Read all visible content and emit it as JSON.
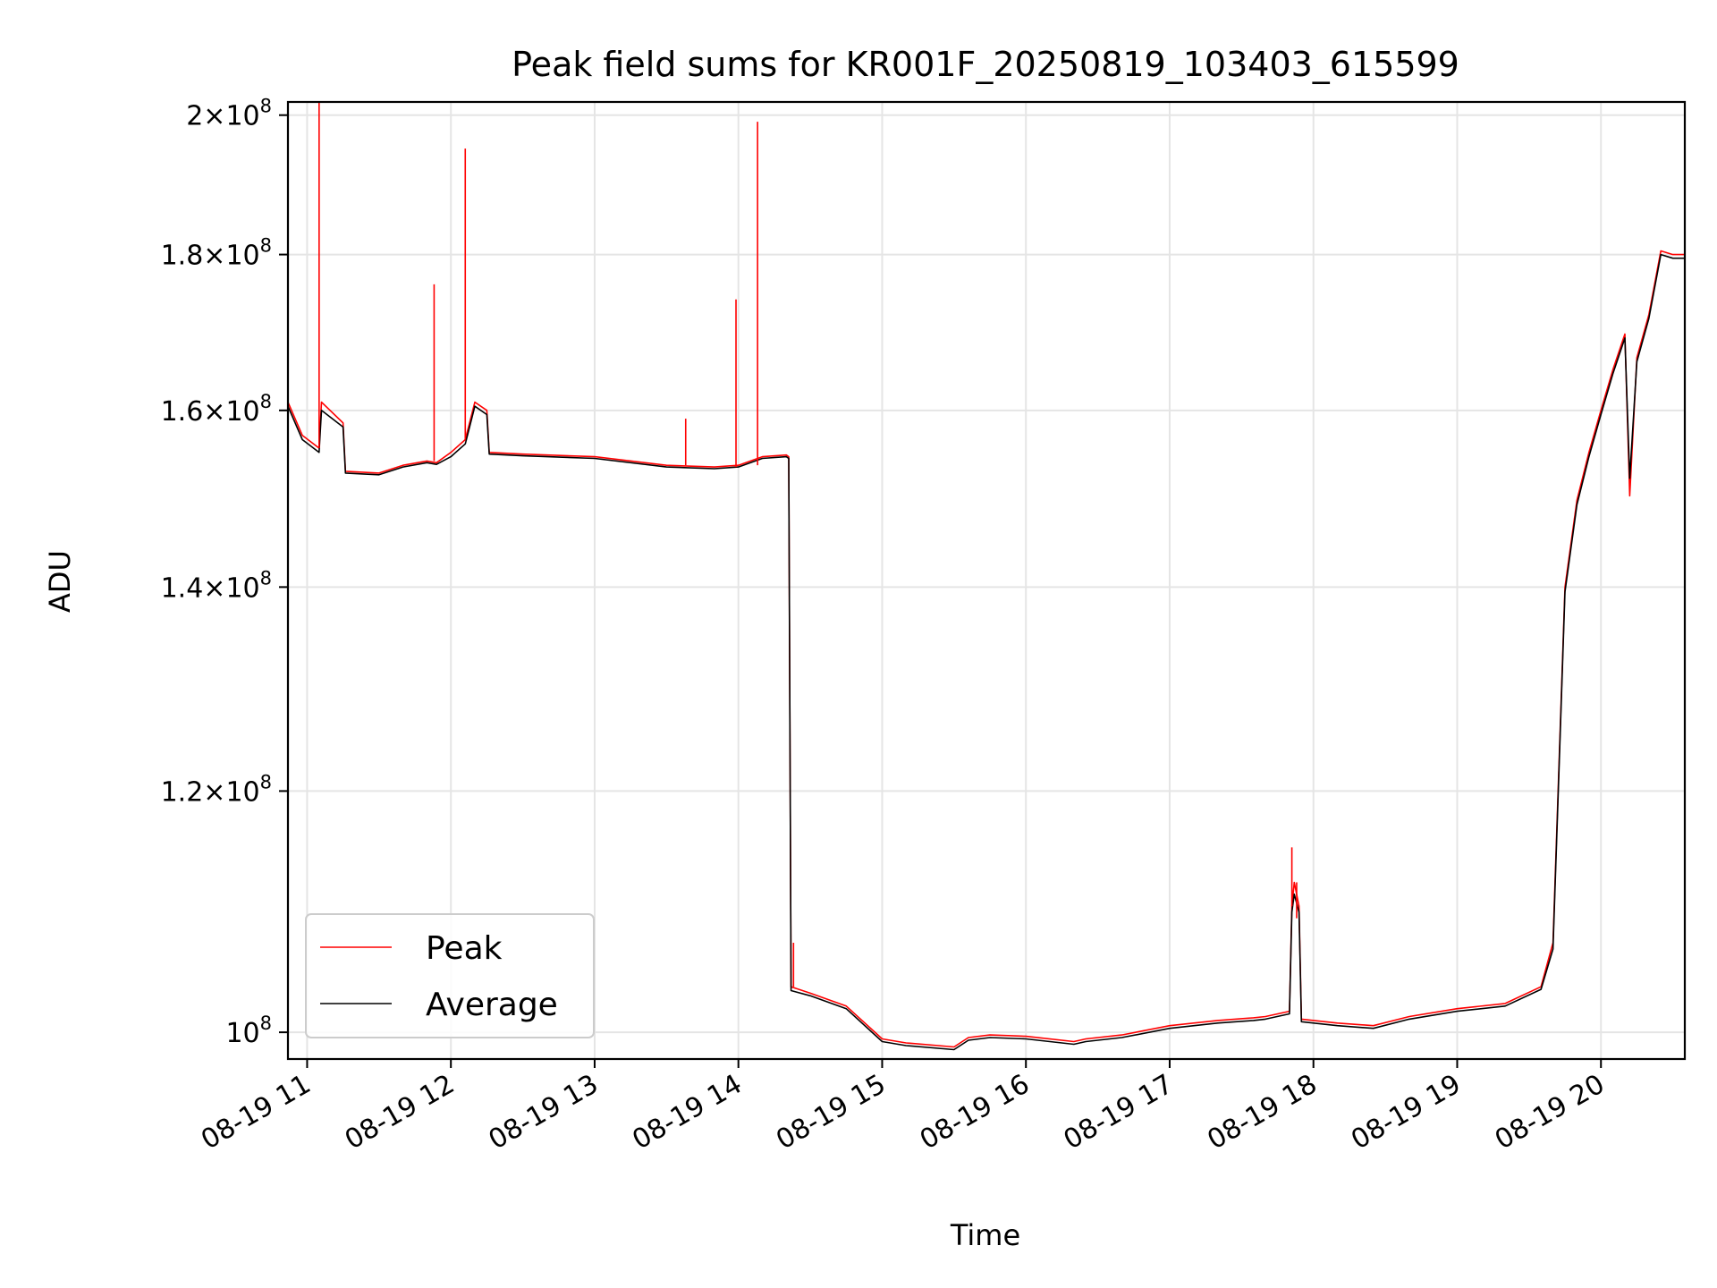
{
  "chart_data": {
    "type": "line",
    "title": "Peak field sums for KR001F_20250819_103403_615599",
    "xlabel": "Time",
    "ylabel": "ADU",
    "y_scale": "log",
    "grid": true,
    "legend_position": "lower-left",
    "xlim": [
      "2025-08-19 10:52",
      "2025-08-19 20:35"
    ],
    "ylim": [
      98000000,
      202000000
    ],
    "x_ticks": [
      "08-19 11",
      "08-19 12",
      "08-19 13",
      "08-19 14",
      "08-19 15",
      "08-19 16",
      "08-19 17",
      "08-19 18",
      "08-19 19",
      "08-19 20"
    ],
    "y_ticks": [
      {
        "value": 100000000,
        "mant": "",
        "exp": "8",
        "base": "10"
      },
      {
        "value": 120000000,
        "mant": "1.2",
        "exp": "8",
        "base": "10"
      },
      {
        "value": 140000000,
        "mant": "1.4",
        "exp": "8",
        "base": "10"
      },
      {
        "value": 160000000,
        "mant": "1.6",
        "exp": "8",
        "base": "10"
      },
      {
        "value": 180000000,
        "mant": "1.8",
        "exp": "8",
        "base": "10"
      },
      {
        "value": 200000000,
        "mant": "2",
        "exp": "8",
        "base": "10"
      }
    ],
    "x": [
      "2025-08-19 10:52",
      "2025-08-19 10:58",
      "2025-08-19 11:05",
      "2025-08-19 11:06",
      "2025-08-19 11:15",
      "2025-08-19 11:16",
      "2025-08-19 11:30",
      "2025-08-19 11:40",
      "2025-08-19 11:50",
      "2025-08-19 11:54",
      "2025-08-19 12:00",
      "2025-08-19 12:06",
      "2025-08-19 12:10",
      "2025-08-19 12:15",
      "2025-08-19 12:16",
      "2025-08-19 12:30",
      "2025-08-19 13:00",
      "2025-08-19 13:30",
      "2025-08-19 13:50",
      "2025-08-19 14:00",
      "2025-08-19 14:10",
      "2025-08-19 14:20",
      "2025-08-19 14:21",
      "2025-08-19 14:22",
      "2025-08-19 14:30",
      "2025-08-19 14:45",
      "2025-08-19 15:00",
      "2025-08-19 15:10",
      "2025-08-19 15:30",
      "2025-08-19 15:36",
      "2025-08-19 15:45",
      "2025-08-19 16:00",
      "2025-08-19 16:20",
      "2025-08-19 16:25",
      "2025-08-19 16:40",
      "2025-08-19 17:00",
      "2025-08-19 17:20",
      "2025-08-19 17:35",
      "2025-08-19 17:40",
      "2025-08-19 17:50",
      "2025-08-19 17:51",
      "2025-08-19 17:52",
      "2025-08-19 17:54",
      "2025-08-19 17:55",
      "2025-08-19 18:10",
      "2025-08-19 18:25",
      "2025-08-19 18:40",
      "2025-08-19 19:00",
      "2025-08-19 19:20",
      "2025-08-19 19:35",
      "2025-08-19 19:40",
      "2025-08-19 19:45",
      "2025-08-19 19:50",
      "2025-08-19 19:55",
      "2025-08-19 20:00",
      "2025-08-19 20:05",
      "2025-08-19 20:10",
      "2025-08-19 20:12",
      "2025-08-19 20:15",
      "2025-08-19 20:20",
      "2025-08-19 20:25",
      "2025-08-19 20:30",
      "2025-08-19 20:35"
    ],
    "series": [
      {
        "name": "Peak",
        "color": "#ff0000",
        "values": [
          161000000,
          157000000,
          155500000,
          161000000,
          158500000,
          152800000,
          152600000,
          153500000,
          154000000,
          153800000,
          155000000,
          156500000,
          161000000,
          160000000,
          155000000,
          154800000,
          154500000,
          153500000,
          153300000,
          153500000,
          154500000,
          154700000,
          154500000,
          103500000,
          103000000,
          102000000,
          99500000,
          99200000,
          98900000,
          99600000,
          99800000,
          99700000,
          99300000,
          99500000,
          99800000,
          100500000,
          100900000,
          101100000,
          101200000,
          101600000,
          110000000,
          112000000,
          110000000,
          101000000,
          100700000,
          100500000,
          101200000,
          101800000,
          102200000,
          103500000,
          107000000,
          140000000,
          149500000,
          155000000,
          160000000,
          165000000,
          169500000,
          150000000,
          166500000,
          172000000,
          180500000,
          180000000,
          180000000
        ]
      },
      {
        "name": "Average",
        "color": "#000000",
        "values": [
          160500000,
          156500000,
          155000000,
          160000000,
          158000000,
          152600000,
          152400000,
          153300000,
          153800000,
          153600000,
          154500000,
          156000000,
          160500000,
          159500000,
          154800000,
          154600000,
          154300000,
          153300000,
          153100000,
          153300000,
          154300000,
          154500000,
          154300000,
          103200000,
          102800000,
          101800000,
          99300000,
          99000000,
          98700000,
          99400000,
          99600000,
          99500000,
          99100000,
          99300000,
          99600000,
          100300000,
          100700000,
          100900000,
          101000000,
          101400000,
          109500000,
          111000000,
          109500000,
          100800000,
          100500000,
          100300000,
          101000000,
          101600000,
          102000000,
          103300000,
          106500000,
          139500000,
          149000000,
          154500000,
          159500000,
          164500000,
          169000000,
          152000000,
          166000000,
          171500000,
          180000000,
          179500000,
          179500000
        ]
      }
    ],
    "spikes": [
      {
        "series": "Peak",
        "x": "2025-08-19 11:05",
        "value": 202000000
      },
      {
        "series": "Peak",
        "x": "2025-08-19 11:53",
        "value": 176000000
      },
      {
        "series": "Peak",
        "x": "2025-08-19 12:06",
        "value": 195000000
      },
      {
        "series": "Peak",
        "x": "2025-08-19 13:38",
        "value": 159000000
      },
      {
        "series": "Peak",
        "x": "2025-08-19 13:59",
        "value": 174000000
      },
      {
        "series": "Peak",
        "x": "2025-08-19 14:08",
        "value": 199000000
      },
      {
        "series": "Peak",
        "x": "2025-08-19 14:23",
        "value": 107000000
      },
      {
        "series": "Peak",
        "x": "2025-08-19 17:51",
        "value": 115000000
      },
      {
        "series": "Peak",
        "x": "2025-08-19 17:53",
        "value": 109000000
      }
    ]
  }
}
